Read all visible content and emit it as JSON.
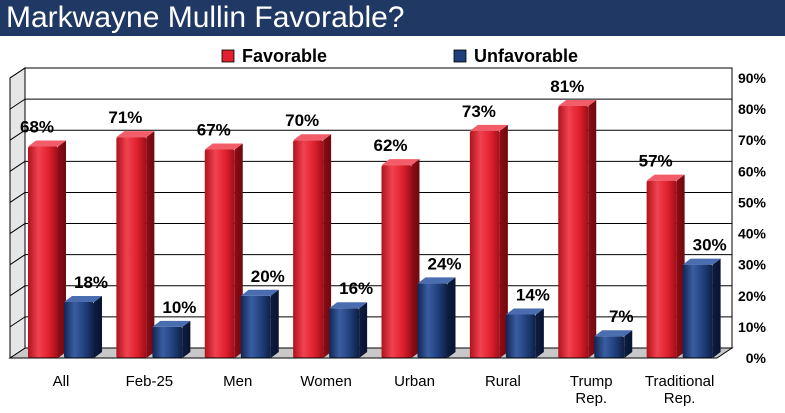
{
  "title": "Markwayne Mullin Favorable?",
  "chart_data": {
    "type": "bar",
    "title": "Markwayne Mullin Favorable?",
    "categories": [
      [
        "All"
      ],
      [
        "Feb-25"
      ],
      [
        "Men"
      ],
      [
        "Women"
      ],
      [
        "Urban"
      ],
      [
        "Rural"
      ],
      [
        "Trump",
        "Rep."
      ],
      [
        "Traditional",
        "Rep."
      ]
    ],
    "series": [
      {
        "name": "Favorable",
        "color": "#e0202e",
        "values": [
          68,
          71,
          67,
          70,
          62,
          73,
          81,
          57
        ],
        "labels": [
          "68%",
          "71%",
          "67%",
          "70%",
          "62%",
          "73%",
          "81%",
          "57%"
        ]
      },
      {
        "name": "Unfavorable",
        "color": "#1f3f7a",
        "values": [
          18,
          10,
          20,
          16,
          24,
          14,
          7,
          30
        ],
        "labels": [
          "18%",
          "10%",
          "20%",
          "16%",
          "24%",
          "14%",
          "7%",
          "30%"
        ]
      }
    ],
    "ylim": [
      0,
      90
    ],
    "yticks": [
      "0%",
      "10%",
      "20%",
      "30%",
      "40%",
      "50%",
      "60%",
      "70%",
      "80%",
      "90%"
    ],
    "grid": true,
    "legend": "top-center",
    "xlabel": "",
    "ylabel": ""
  }
}
